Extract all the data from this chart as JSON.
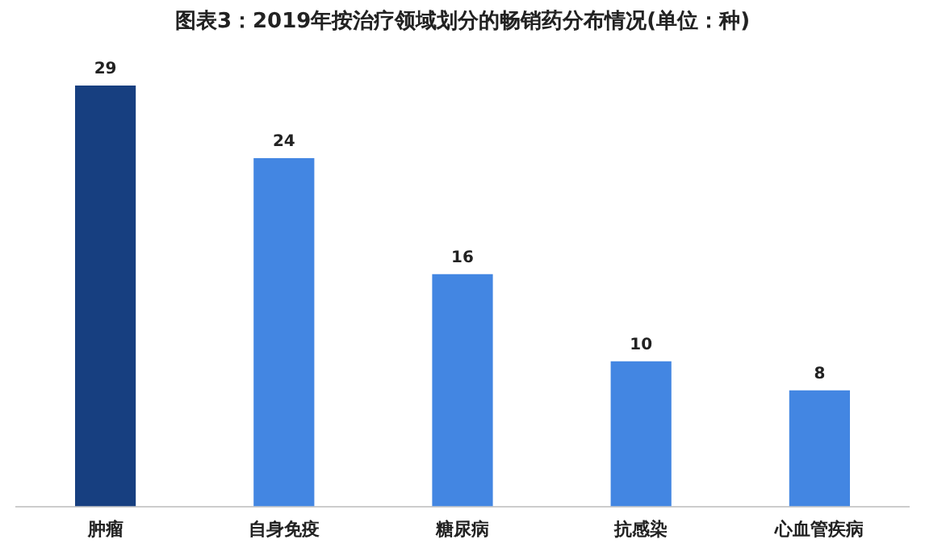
{
  "chart_data": {
    "type": "bar",
    "title": "图表3：2019年按治疗领域划分的畅销药分布情况(单位：种)",
    "categories": [
      "肿瘤",
      "自身免疫",
      "糖尿病",
      "抗感染",
      "心血管疾病"
    ],
    "values": [
      29,
      24,
      16,
      10,
      8
    ],
    "colors": [
      "#173f80",
      "#4386e2",
      "#4386e2",
      "#4386e2",
      "#4386e2"
    ],
    "data_labels": true,
    "grid": false,
    "legend": false
  }
}
